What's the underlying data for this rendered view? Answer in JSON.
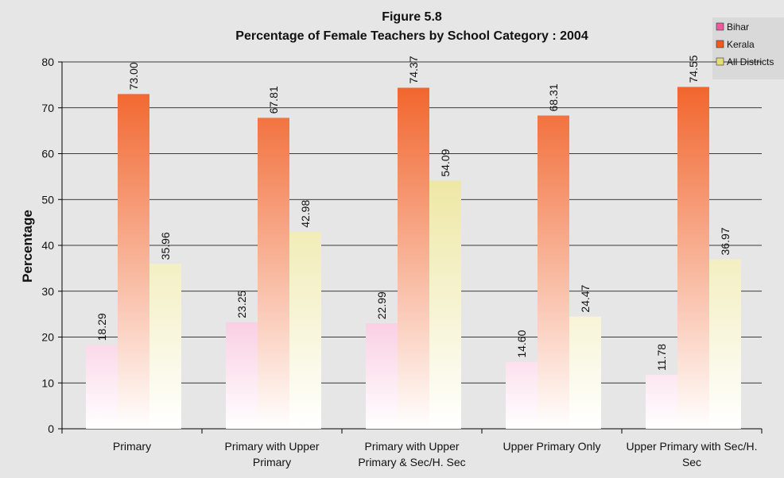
{
  "chart_data": {
    "type": "bar",
    "title": "Figure 5.8",
    "subtitle": "Percentage of Female Teachers by School Category : 2004",
    "ylabel": "Percentage",
    "categories": [
      "Primary",
      "Primary with Upper Primary",
      "Primary with Upper Primary & Sec/H. Sec",
      "Upper Primary Only",
      "Upper Primary with Sec/H. Sec"
    ],
    "series": [
      {
        "name": "Bihar",
        "color": "#ec5aa0",
        "values": [
          18.29,
          23.25,
          22.99,
          14.6,
          11.78
        ],
        "value_labels": [
          "18.29",
          "23.25",
          "22.99",
          "14.60",
          "11.78"
        ]
      },
      {
        "name": "Kerala",
        "color": "#f05a1e",
        "values": [
          73.0,
          67.81,
          74.37,
          68.31,
          74.55
        ],
        "value_labels": [
          "73.00",
          "67.81",
          "74.37",
          "68.31",
          "74.55"
        ]
      },
      {
        "name": "All Districts",
        "color": "#e6dc7a",
        "values": [
          35.96,
          42.98,
          54.09,
          24.47,
          36.97
        ],
        "value_labels": [
          "35.96",
          "42.98",
          "54.09",
          "24.47",
          "36.97"
        ]
      }
    ],
    "ylim": [
      0,
      80
    ],
    "yticks": [
      0,
      10,
      20,
      30,
      40,
      50,
      60,
      70,
      80
    ],
    "grid": true,
    "legend": "top-right"
  }
}
